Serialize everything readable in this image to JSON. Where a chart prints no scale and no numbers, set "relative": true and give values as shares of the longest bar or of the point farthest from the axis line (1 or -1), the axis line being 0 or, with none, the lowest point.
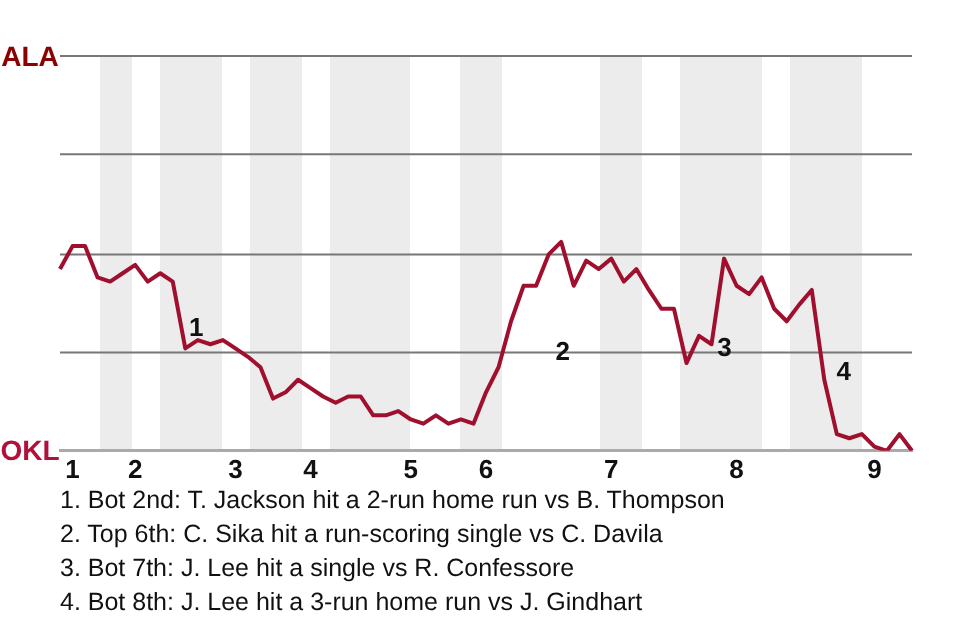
{
  "chart_data": {
    "type": "line",
    "color": "#a0102e",
    "line_style": "solid",
    "marker": "none",
    "legend": false,
    "ref_lines": [
      {
        "axis": "y",
        "value": 0.47,
        "color": "#777777"
      },
      {
        "axis": "y",
        "value": 0.94,
        "color": "#777777"
      },
      {
        "axis": "y",
        "value": 1.42,
        "color": "#777777"
      },
      {
        "axis": "y",
        "value": 1.89,
        "color": "#777777"
      }
    ],
    "relative": true,
    "tick_labels": "x",
    "categories": [
      null,
      "1",
      null,
      null,
      null,
      null,
      "2",
      null,
      null,
      null,
      null,
      null,
      null,
      null,
      "3",
      null,
      null,
      null,
      null,
      null,
      "4",
      null,
      null,
      null,
      null,
      null,
      null,
      null,
      "5",
      null,
      null,
      null,
      null,
      null,
      "6",
      null,
      null,
      null,
      null,
      null,
      null,
      null,
      null,
      null,
      "7",
      null,
      null,
      null,
      null,
      null,
      null,
      null,
      null,
      null,
      "8",
      null,
      null,
      null,
      null,
      null,
      null,
      null,
      null,
      null,
      null,
      "9",
      null,
      null,
      null
    ],
    "values": [
      0.87,
      0.98,
      0.98,
      0.83,
      0.81,
      0.85,
      0.89,
      0.81,
      0.85,
      0.81,
      0.49,
      0.53,
      0.51,
      0.53,
      0.49,
      0.45,
      0.4,
      0.25,
      0.28,
      0.34,
      0.3,
      0.26,
      0.23,
      0.26,
      0.26,
      0.17,
      0.17,
      0.19,
      0.15,
      0.13,
      0.17,
      0.13,
      0.15,
      0.13,
      0.28,
      0.4,
      0.62,
      0.79,
      0.79,
      0.94,
      1,
      0.79,
      0.91,
      0.87,
      0.92,
      0.81,
      0.87,
      0.77,
      0.68,
      0.68,
      0.42,
      0.55,
      0.51,
      0.92,
      0.79,
      0.75,
      0.83,
      0.68,
      0.62,
      0.7,
      0.77,
      0.34,
      0.08,
      0.06,
      0.08,
      0.02,
      0,
      0.08,
      0
    ],
    "annotations": [
      "ALA",
      "OKL",
      "1",
      "2",
      "3",
      "4",
      "1. Bot 2nd: T. Jackson hit a 2-run home run vs B. Thompson",
      "2. Top 6th: C. Sika hit a run-scoring single vs C. Davila",
      "3. Bot 7th: J. Lee hit a single vs R. Confessore",
      "4. Bot 8th: J. Lee hit a 3-run home run vs J. Gindhart"
    ]
  }
}
